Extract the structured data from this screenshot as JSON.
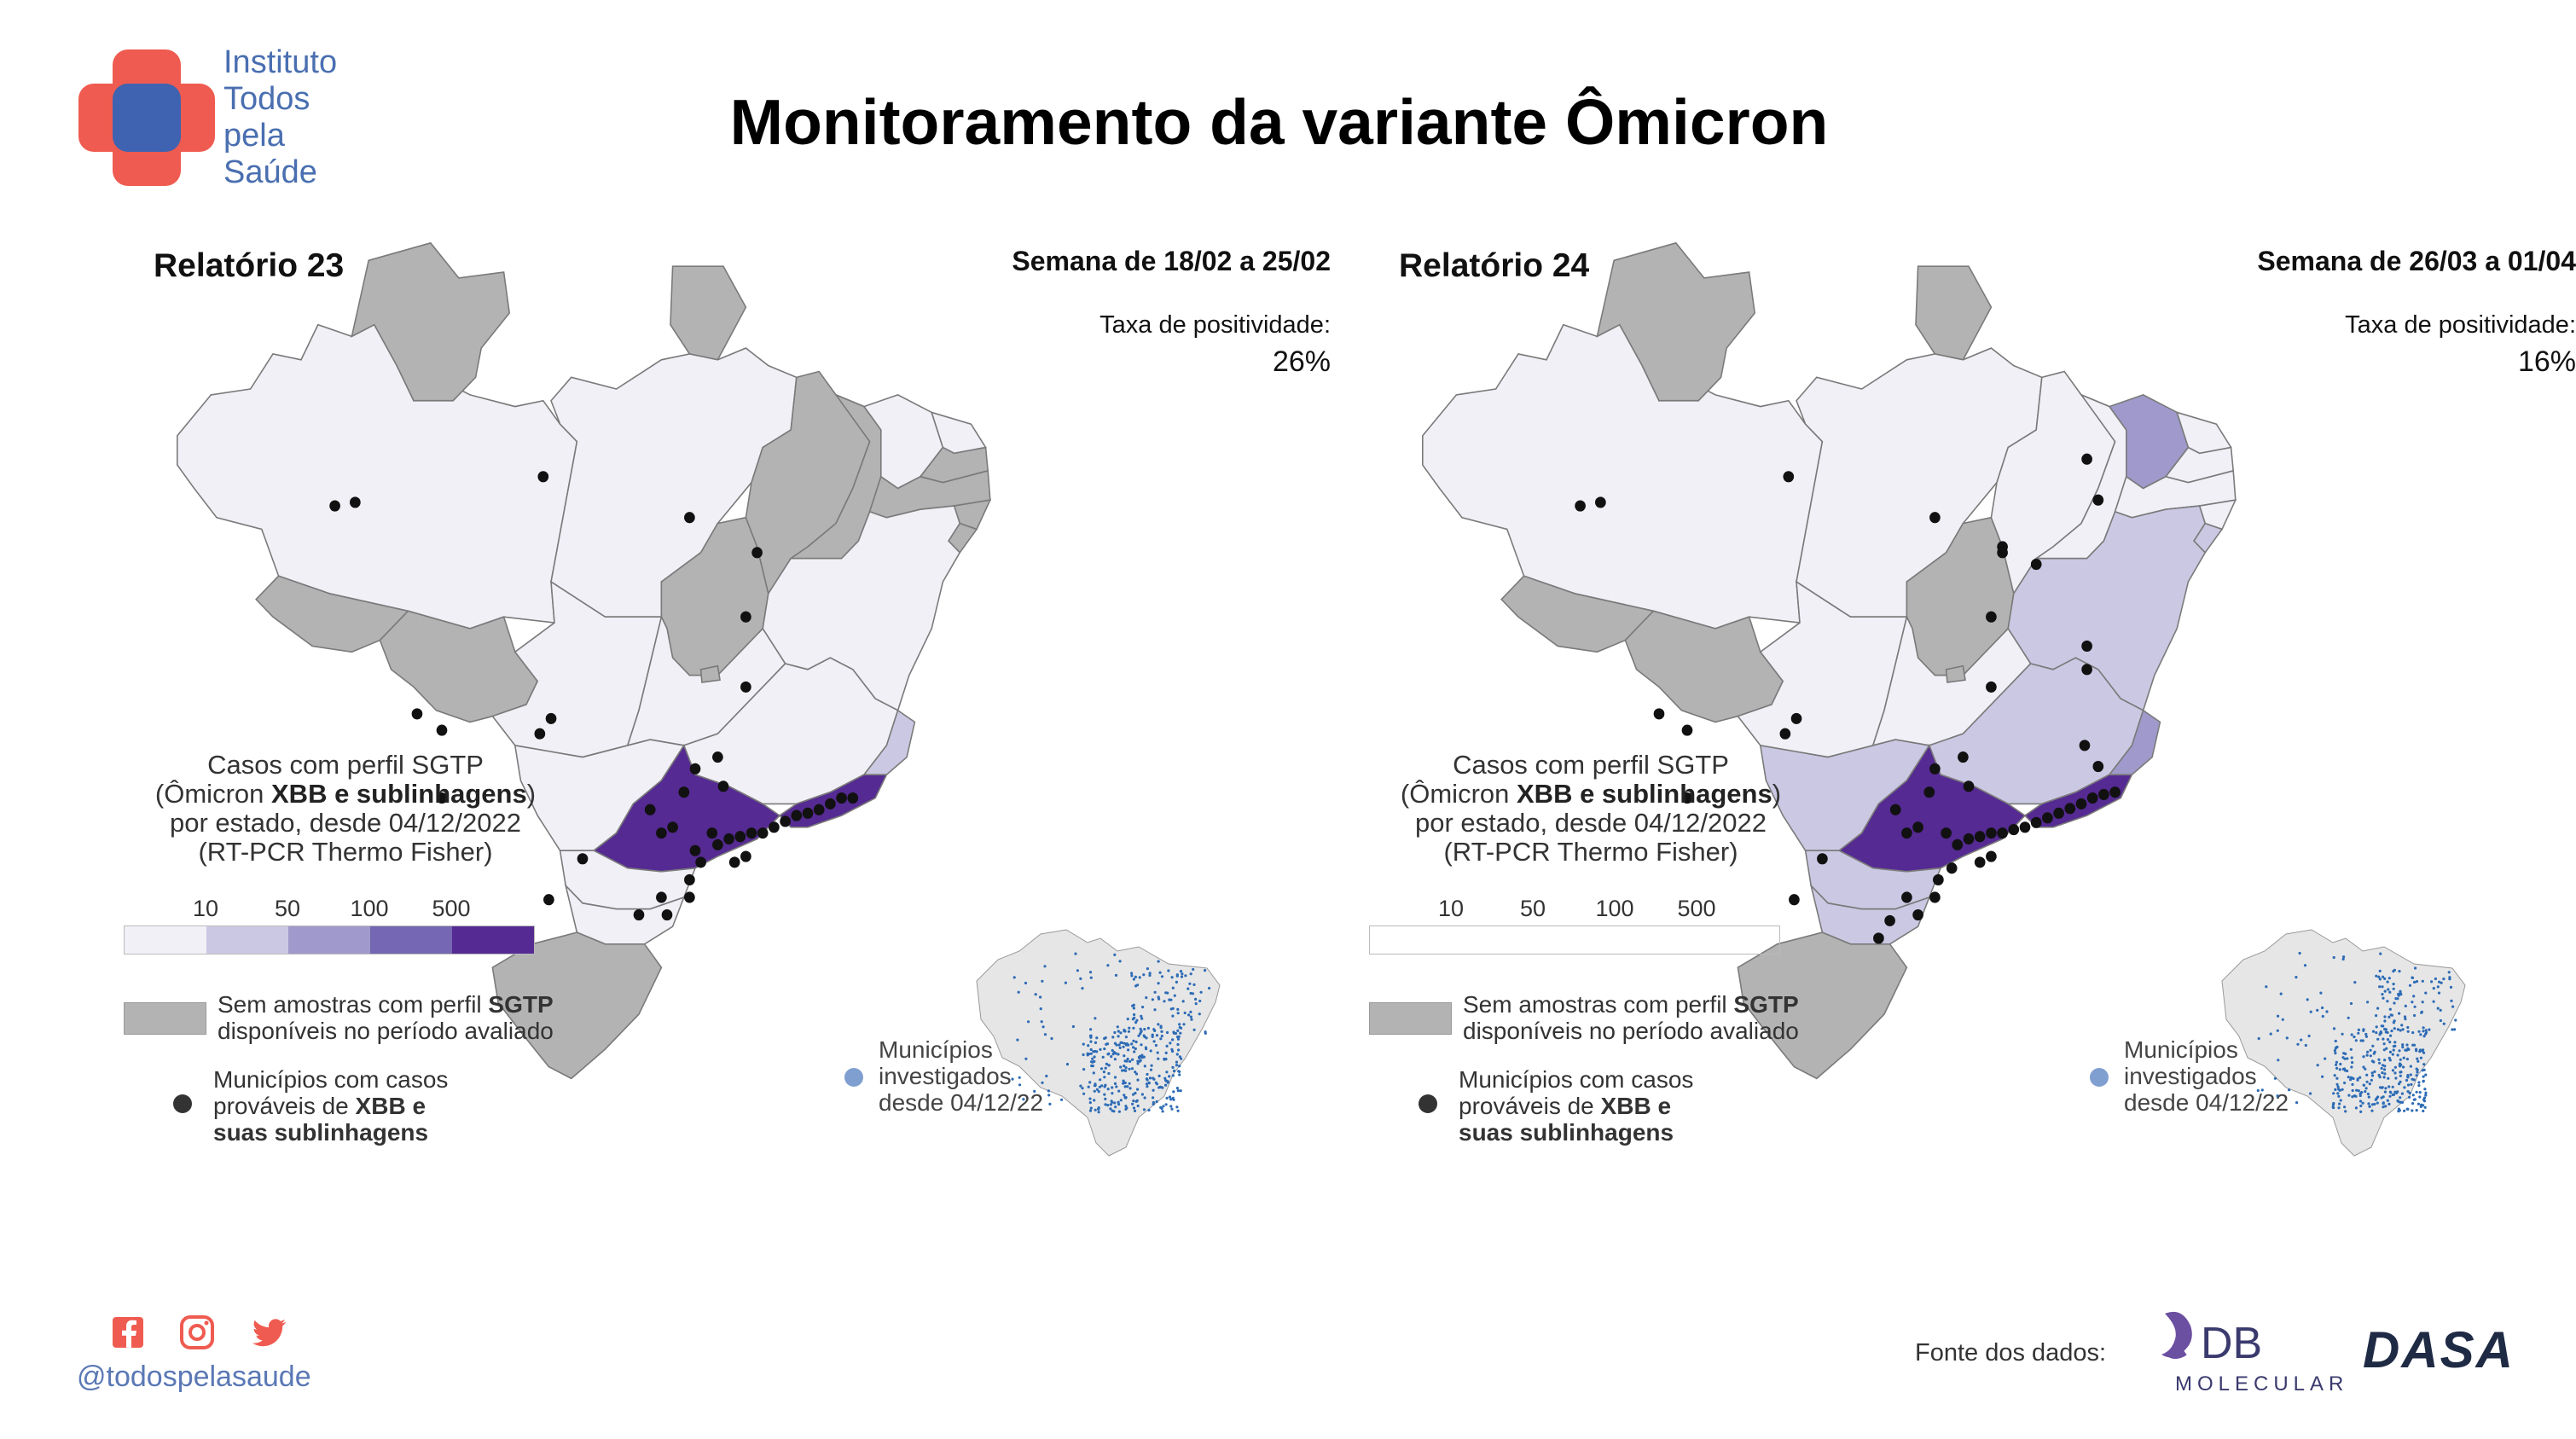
{
  "org": {
    "name_lines": [
      "Instituto",
      "Todos",
      "pela",
      "Saúde"
    ],
    "handle": "@todospelasaude"
  },
  "title": "Monitoramento da variante Ômicron",
  "colors": {
    "scale": [
      "#f1f0f7",
      "#cbc8e3",
      "#9f9acb",
      "#7567b3",
      "#552a92"
    ],
    "no_sample": "#b3b3b3",
    "border": "#7a7a7a",
    "dot": "#111111",
    "inset_dot": "#2d6bb5",
    "brand_blue": "#4a6fb0",
    "brand_red": "#ef5b50"
  },
  "legend": {
    "title_line1": "Casos com perfil SGTP",
    "title_line2_pre": "(Ômicron ",
    "title_line2_bold": "XBB e sublinhagens",
    "title_line2_post": ")",
    "title_line3": "por estado, desde 04/12/2022",
    "title_line4": "(RT-PCR Thermo Fisher)",
    "ticks": [
      "10",
      "50",
      "100",
      "500"
    ],
    "no_sample_pre": "Sem amostras com perfil ",
    "no_sample_bold": "SGTP",
    "no_sample_line2": "disponíveis no período avaliado",
    "dots_line1": "Municípios com casos",
    "dots_line2_pre": "prováveis de ",
    "dots_line2_bold": "XBB e",
    "dots_line3_bold": "suas sublinhagens",
    "inset_line1": "Municípios",
    "inset_line2": "investigados",
    "inset_line3": "desde 04/12/22"
  },
  "reports": [
    {
      "title": "Relatório 23",
      "week": "Semana de 18/02 a 25/02",
      "positivity_label": "Taxa de positividade:",
      "positivity_value": "26%",
      "positivity_rate": 0.26
    },
    {
      "title": "Relatório 24",
      "week": "Semana de 26/03 a 01/04",
      "positivity_label": "Taxa de positividade:",
      "positivity_value": "16%",
      "positivity_rate": 0.16
    }
  ],
  "footer": {
    "source_label": "Fonte dos dados:",
    "db_logo_text": "DB",
    "db_logo_sub": "MOLECULAR",
    "dasa_logo_text": "DASA"
  }
}
